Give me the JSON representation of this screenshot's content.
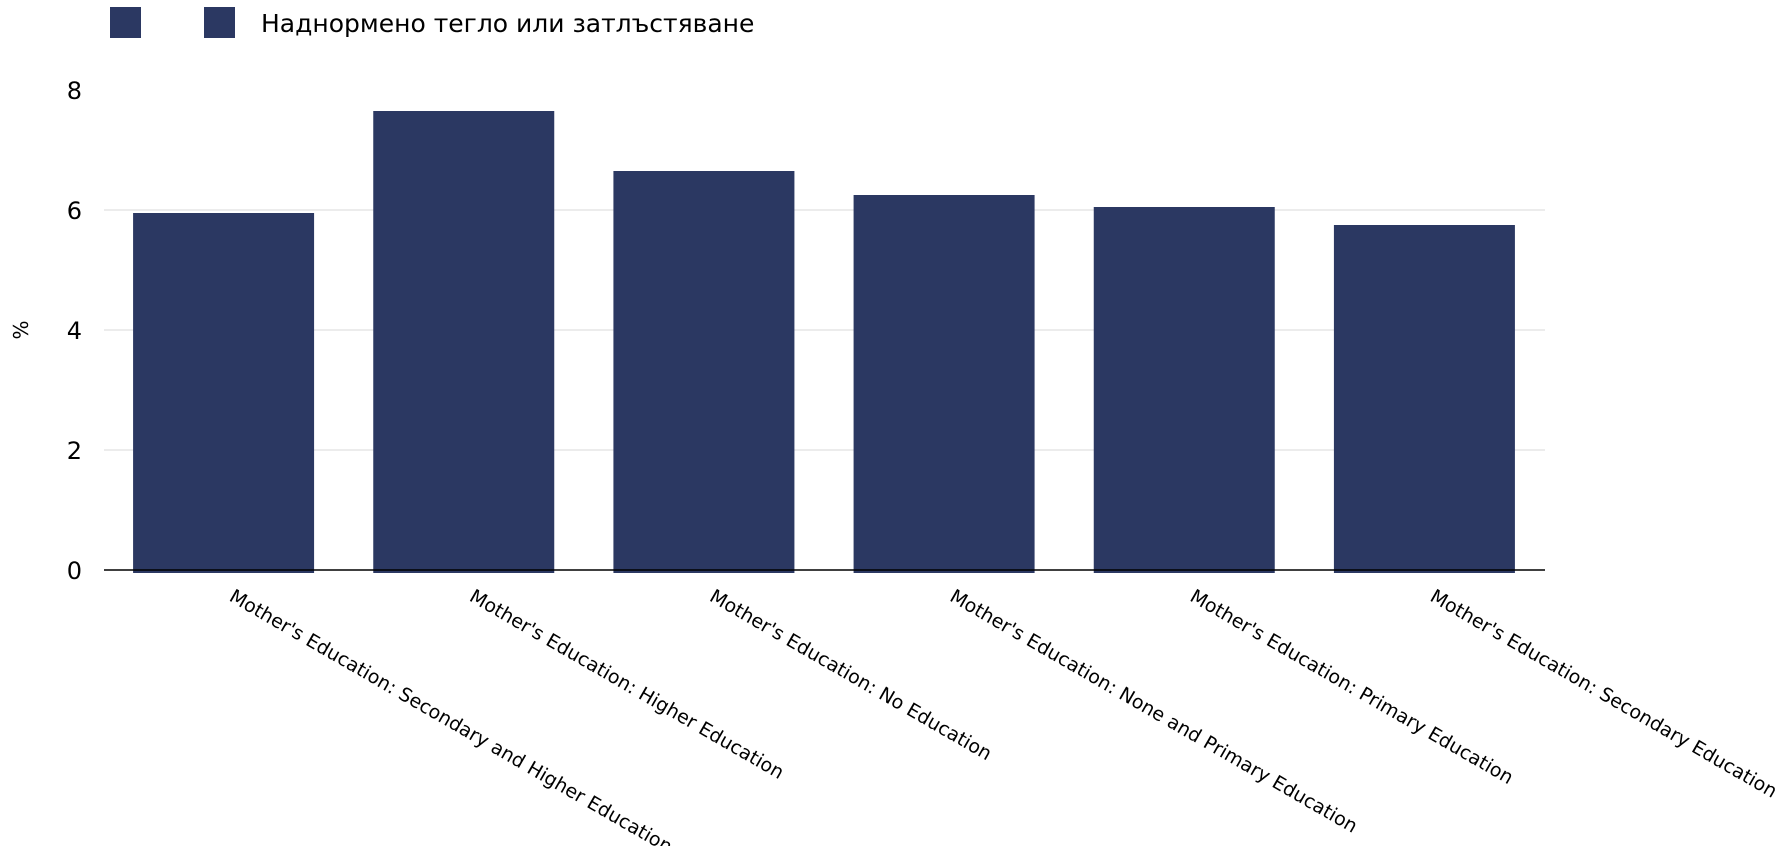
{
  "chart_data": {
    "type": "bar",
    "categories": [
      "Mother's Education: Secondary and Higher Education",
      "Mother's Education: Higher Education",
      "Mother's Education: No Education",
      "Mother's Education: None and Primary Education",
      "Mother's Education: Primary Education",
      "Mother's Education: Secondary Education"
    ],
    "series": [
      {
        "name": "Наднормено тегло или затлъстяване",
        "values": [
          5.95,
          7.65,
          6.65,
          6.25,
          6.05,
          5.75
        ]
      }
    ],
    "legend_entries": [
      "",
      "Наднормено тегло или затлъстяване"
    ],
    "ylabel": "%",
    "ylim": [
      0,
      8
    ],
    "yticks": [
      0,
      2,
      4,
      6,
      8
    ],
    "grid": true,
    "legend_position": "top-left",
    "colors": {
      "bar": "#2b3862",
      "grid": "#e6e6e6",
      "axis": "#000000"
    }
  }
}
